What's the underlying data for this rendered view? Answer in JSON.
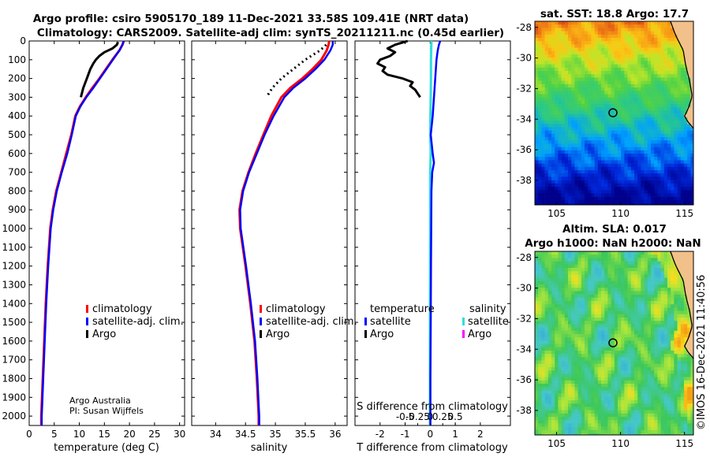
{
  "title": {
    "line1": "Argo profile: csiro 5905170_189 11-Dec-2021 33.58S 109.41E (NRT data)",
    "line2": "Climatology: CARS2009. Satellite-adj clim: synTS_20211211.nc (0.45d earlier)"
  },
  "colors": {
    "climatology": "#ff0000",
    "satellite": "#0000ff",
    "argo": "#000000",
    "sal_satellite": "#33dddd",
    "sal_argo": "#ff00ff"
  },
  "chart_data": [
    {
      "type": "line",
      "id": "temperature",
      "xlabel": "temperature (deg C)",
      "ylabel": "",
      "xlim": [
        0,
        31
      ],
      "ylim": [
        2050,
        0
      ],
      "xticks": [
        "0",
        "5",
        "10",
        "15",
        "20",
        "25",
        "30"
      ],
      "xtick_values": [
        0,
        5,
        10,
        15,
        20,
        25,
        30
      ],
      "yticks": [
        "0",
        "100",
        "200",
        "300",
        "400",
        "500",
        "600",
        "700",
        "800",
        "900",
        "1000",
        "1100",
        "1200",
        "1300",
        "1400",
        "1500",
        "1600",
        "1700",
        "1800",
        "1900",
        "2000"
      ],
      "ytick_values": [
        0,
        100,
        200,
        300,
        400,
        500,
        600,
        700,
        800,
        900,
        1000,
        1100,
        1200,
        1300,
        1400,
        1500,
        1600,
        1700,
        1800,
        1900,
        2000
      ],
      "legend": [
        "climatology",
        "satellite-adj. clim.",
        "Argo"
      ],
      "note": [
        "Argo Australia",
        "PI: Susan Wijffels"
      ],
      "series": [
        {
          "name": "climatology",
          "depth": [
            0,
            20,
            50,
            100,
            150,
            200,
            250,
            300,
            350,
            400,
            500,
            600,
            700,
            800,
            900,
            1000,
            1200,
            1400,
            1600,
            1800,
            2000,
            2050
          ],
          "values": [
            18.9,
            18.6,
            18.0,
            16.6,
            15.3,
            14.0,
            12.6,
            11.3,
            10.1,
            9.2,
            8.4,
            7.4,
            6.4,
            5.4,
            4.7,
            4.2,
            3.7,
            3.3,
            3.0,
            2.7,
            2.4,
            2.4
          ]
        },
        {
          "name": "satellite-adj. clim.",
          "depth": [
            0,
            20,
            50,
            100,
            150,
            200,
            250,
            300,
            350,
            400,
            500,
            600,
            700,
            800,
            900,
            1000,
            1200,
            1400,
            1600,
            1800,
            2000,
            2050
          ],
          "values": [
            18.8,
            18.6,
            18.0,
            16.7,
            15.4,
            14.1,
            12.8,
            11.4,
            10.2,
            9.3,
            8.5,
            7.6,
            6.5,
            5.5,
            4.8,
            4.3,
            3.8,
            3.4,
            3.1,
            2.8,
            2.5,
            2.5
          ]
        },
        {
          "name": "Argo",
          "depth": [
            5,
            20,
            40,
            60,
            80,
            100,
            120,
            150,
            200,
            250,
            300
          ],
          "values": [
            17.7,
            17.5,
            16.6,
            15.0,
            14.0,
            13.3,
            12.8,
            12.2,
            11.5,
            10.8,
            10.3
          ]
        }
      ]
    },
    {
      "type": "line",
      "id": "salinity",
      "xlabel": "salinity",
      "ylabel": "",
      "xlim": [
        33.6,
        36.2
      ],
      "ylim": [
        2050,
        0
      ],
      "xticks": [
        "34",
        "34.5",
        "35",
        "35.5",
        "36"
      ],
      "xtick_values": [
        34,
        34.5,
        35,
        35.5,
        36
      ],
      "legend": [
        "climatology",
        "satellite-adj. clim.",
        "Argo"
      ],
      "series": [
        {
          "name": "climatology",
          "depth": [
            0,
            20,
            50,
            100,
            150,
            200,
            250,
            300,
            400,
            500,
            600,
            700,
            800,
            900,
            1000,
            1200,
            1400,
            1600,
            1800,
            2000,
            2050
          ],
          "values": [
            35.9,
            35.89,
            35.86,
            35.77,
            35.62,
            35.45,
            35.25,
            35.1,
            34.93,
            34.8,
            34.67,
            34.55,
            34.45,
            34.4,
            34.41,
            34.5,
            34.58,
            34.65,
            34.69,
            34.72,
            34.72
          ]
        },
        {
          "name": "satellite-adj. clim.",
          "depth": [
            0,
            20,
            50,
            100,
            150,
            200,
            250,
            300,
            400,
            500,
            600,
            700,
            800,
            900,
            1000,
            1200,
            1400,
            1600,
            1800,
            2000,
            2050
          ],
          "values": [
            35.96,
            35.96,
            35.92,
            35.82,
            35.67,
            35.5,
            35.3,
            35.15,
            34.97,
            34.82,
            34.69,
            34.56,
            34.46,
            34.41,
            34.42,
            34.51,
            34.59,
            34.66,
            34.7,
            34.73,
            34.73
          ]
        },
        {
          "name": "Argo",
          "depth": [
            20,
            50,
            80,
            100,
            150,
            200,
            250,
            300
          ],
          "values": [
            35.85,
            35.75,
            35.6,
            35.5,
            35.3,
            35.1,
            34.95,
            34.85
          ]
        }
      ]
    },
    {
      "type": "line",
      "id": "difference",
      "xlabel": "T difference from climatology",
      "top_label": "S difference from climatology",
      "xlim": [
        -3,
        3.2
      ],
      "ylim": [
        2050,
        0
      ],
      "xticks": [
        "-2",
        "-1",
        "0",
        "1",
        "2"
      ],
      "xtick_values": [
        -2,
        -1,
        0,
        1,
        2
      ],
      "s_xticks": [
        "-0.5",
        "-0.25",
        "0",
        "0.25",
        "0.5"
      ],
      "s_xtick_values": [
        -0.5,
        -0.25,
        0,
        0.25,
        0.5
      ],
      "legend_temperature": {
        "title": "temperature",
        "items": [
          "satellite",
          "Argo"
        ]
      },
      "legend_salinity": {
        "title": "salinity",
        "items": [
          "satellite",
          "Argo"
        ]
      },
      "series": [
        {
          "name": "temperature satellite",
          "depth": [
            0,
            20,
            50,
            100,
            200,
            300,
            400,
            500,
            600,
            650,
            700,
            800,
            1000,
            1200,
            1500,
            1800,
            2000,
            2050
          ],
          "values": [
            0.4,
            0.35,
            0.3,
            0.25,
            0.2,
            0.15,
            0.1,
            0.02,
            0.1,
            0.15,
            0.08,
            0.05,
            0.04,
            0.03,
            0.02,
            0.01,
            0.01,
            0.01
          ]
        },
        {
          "name": "temperature Argo",
          "depth": [
            0,
            20,
            40,
            60,
            80,
            100,
            120,
            140,
            160,
            180,
            200,
            220,
            240,
            260,
            280,
            300
          ],
          "values": [
            -0.9,
            -1.4,
            -1.7,
            -1.4,
            -1.6,
            -2.0,
            -2.1,
            -1.8,
            -1.9,
            -1.7,
            -1.1,
            -0.7,
            -0.8,
            -0.6,
            -0.5,
            -0.4
          ]
        },
        {
          "name": "salinity satellite",
          "depth": [
            0,
            50,
            100,
            200,
            300,
            400,
            500,
            600,
            700,
            1000,
            1500,
            2000,
            2050
          ],
          "values": [
            0.05,
            0.04,
            0.03,
            0.03,
            0.02,
            0.01,
            0.0,
            0.02,
            0.0,
            0.0,
            -0.01,
            -0.01,
            -0.01
          ]
        }
      ]
    },
    {
      "type": "heatmap",
      "id": "sst_map",
      "title": "sat. SST: 18.8 Argo: 17.7",
      "xlim": [
        103.3,
        115.7
      ],
      "ylim": [
        -39.6,
        -27.6
      ],
      "xticks": [
        "105",
        "110",
        "115"
      ],
      "xtick_values": [
        105,
        110,
        115
      ],
      "yticks": [
        "-28",
        "-30",
        "-32",
        "-34",
        "-36",
        "-38"
      ],
      "ytick_values": [
        -28,
        -30,
        -32,
        -34,
        -36,
        -38
      ],
      "float_position": [
        109.41,
        -33.58
      ]
    },
    {
      "type": "heatmap",
      "id": "sla_map",
      "title": "Altim. SLA: 0.017",
      "subtitle": "Argo h1000: NaN h2000: NaN",
      "xlim": [
        103.3,
        115.7
      ],
      "ylim": [
        -39.6,
        -27.6
      ],
      "xticks": [
        "105",
        "110",
        "115"
      ],
      "xtick_values": [
        105,
        110,
        115
      ],
      "yticks": [
        "-28",
        "-30",
        "-32",
        "-34",
        "-36",
        "-38"
      ],
      "ytick_values": [
        -28,
        -30,
        -32,
        -34,
        -36,
        -38
      ],
      "float_position": [
        109.41,
        -33.58
      ]
    }
  ],
  "copyright": "©IMOS 16-Dec-2021 11:40:56"
}
